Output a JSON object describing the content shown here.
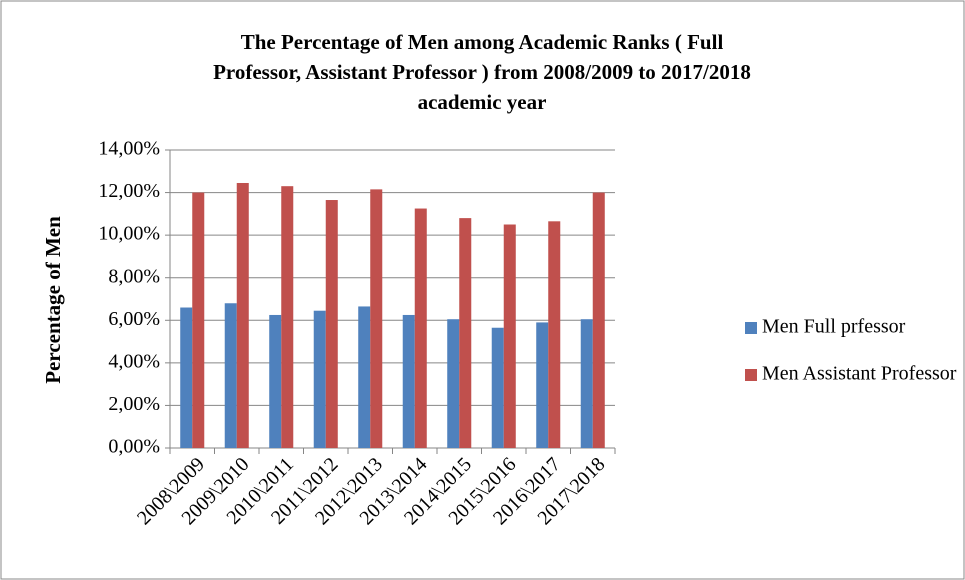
{
  "chart_data": {
    "type": "bar",
    "title": [
      "The  Percentage  of   Men among Academic Ranks ( Full",
      "Professor, Assistant Professor ) from  2008/2009 to 2017/2018",
      "academic year"
    ],
    "y_label": "Percentage of Men",
    "categories": [
      "2008\\2009",
      "2009\\2010",
      "2010\\2011",
      "2011\\2012",
      "2012\\2013",
      "2013\\2014",
      "2014\\2015",
      "2015\\2016",
      "2016\\2017",
      "2017\\2018"
    ],
    "series": [
      {
        "name": "Men Full prfessor",
        "color": "#4f81bd",
        "values": [
          6.6,
          6.8,
          6.25,
          6.45,
          6.65,
          6.25,
          6.05,
          5.65,
          5.9,
          6.05
        ]
      },
      {
        "name": "Men Assistant Professor",
        "color": "#c0504d",
        "values": [
          12.0,
          12.45,
          12.3,
          11.65,
          12.15,
          11.25,
          10.8,
          10.5,
          10.65,
          12.0
        ]
      }
    ],
    "ylim": [
      0,
      14
    ],
    "yticks": [
      {
        "value": 0,
        "label": "0,00%"
      },
      {
        "value": 2,
        "label": "2,00%"
      },
      {
        "value": 4,
        "label": "4,00%"
      },
      {
        "value": 6,
        "label": "6,00%"
      },
      {
        "value": 8,
        "label": "8,00%"
      },
      {
        "value": 10,
        "label": "10,00%"
      },
      {
        "value": 12,
        "label": "12,00%"
      },
      {
        "value": 14,
        "label": "14,00%"
      }
    ],
    "grid": true,
    "legend": "right"
  }
}
